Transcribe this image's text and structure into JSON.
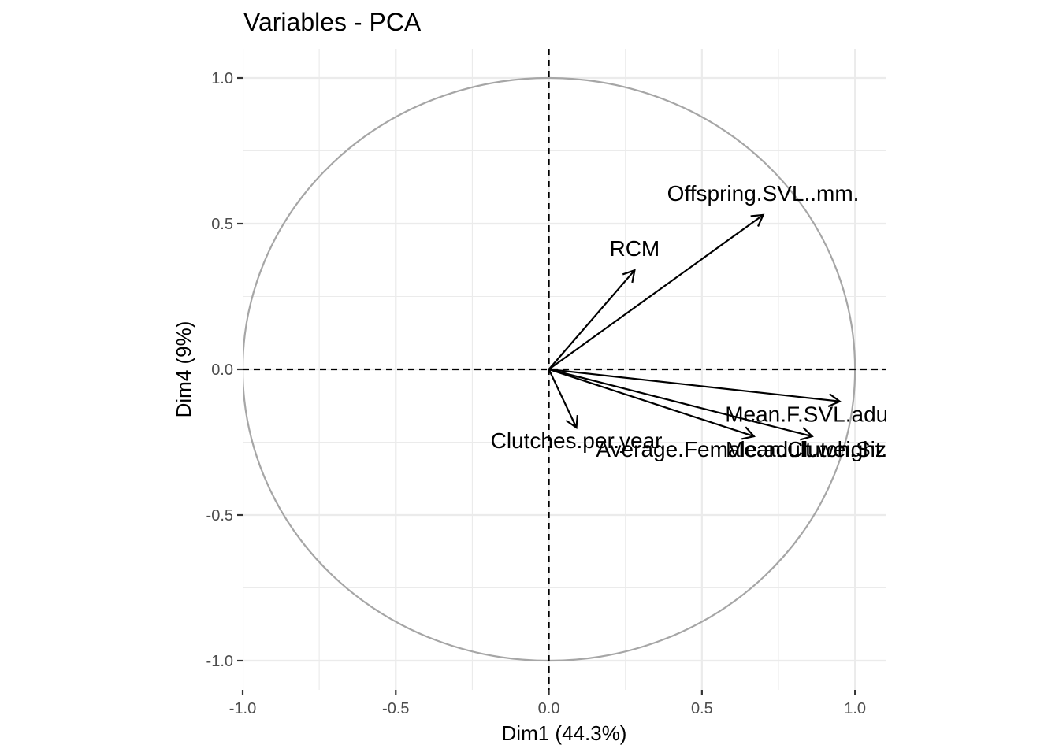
{
  "chart_data": {
    "type": "scatter",
    "subtype": "pca-variable-correlation-circle",
    "title": "Variables - PCA",
    "xlabel": "Dim1 (44.3%)",
    "ylabel": "Dim4 (9%)",
    "xlim": [
      -1.0,
      1.1
    ],
    "ylim": [
      -1.1,
      1.1
    ],
    "x_ticks": [
      -1.0,
      -0.5,
      0.0,
      0.5,
      1.0
    ],
    "x_tick_labels": [
      "-1.0",
      "-0.5",
      "0.0",
      "0.5",
      "1.0"
    ],
    "y_ticks": [
      1.0,
      0.5,
      0.0,
      -0.5,
      -1.0
    ],
    "y_tick_labels": [
      "1.0",
      "0.5",
      "0.0",
      "-0.5",
      "-1.0"
    ],
    "grid": true,
    "unit_circle": true,
    "reference_lines": [
      {
        "axis": "x",
        "value": 0
      },
      {
        "axis": "y",
        "value": 0
      }
    ],
    "variables": [
      {
        "name": "Offspring.SVL..mm.",
        "x": 0.7,
        "y": 0.53
      },
      {
        "name": "RCM",
        "x": 0.28,
        "y": 0.34
      },
      {
        "name": "Mean.F.SVL.adult..mm.",
        "x": 0.95,
        "y": -0.11
      },
      {
        "name": "Mean.Clutch.Size",
        "x": 0.86,
        "y": -0.23
      },
      {
        "name": "Average.Female.adult.weight..g.",
        "x": 0.67,
        "y": -0.23
      },
      {
        "name": "Clutches.per.year",
        "x": 0.09,
        "y": -0.2
      }
    ],
    "colors": {
      "arrow": "#000000",
      "circle": "#a6a6a6",
      "grid": "#ebebeb",
      "tick_label": "#4d4d4d"
    }
  }
}
